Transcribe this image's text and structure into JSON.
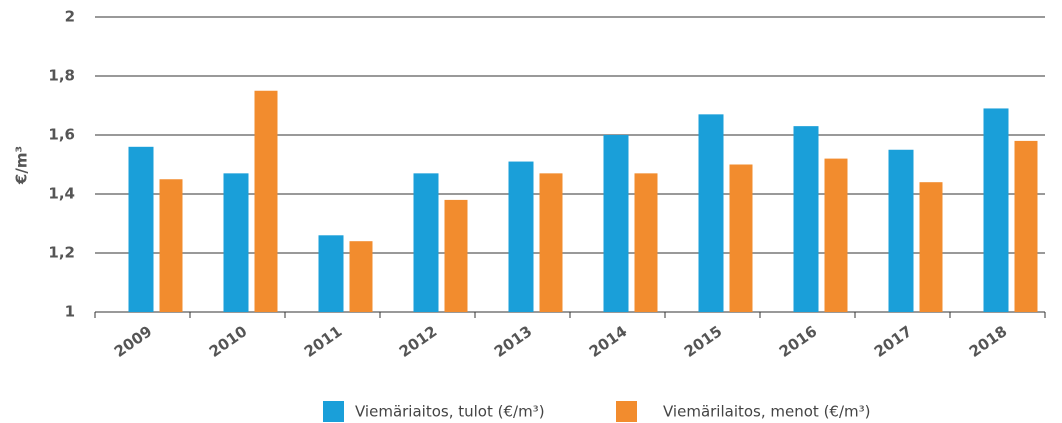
{
  "chart_data": {
    "type": "bar",
    "ylabel": "€/m³",
    "categories": [
      "2009",
      "2010",
      "2011",
      "2012",
      "2013",
      "2014",
      "2015",
      "2016",
      "2017",
      "2018"
    ],
    "series": [
      {
        "name": "Viemäriaitos, tulot (€/m³)",
        "color": "#1a9fd9",
        "values": [
          1.56,
          1.47,
          1.26,
          1.47,
          1.51,
          1.6,
          1.67,
          1.63,
          1.55,
          1.69
        ]
      },
      {
        "name": "Viemärilaitos, menot (€/m³)",
        "color": "#f28c2e",
        "values": [
          1.45,
          1.75,
          1.24,
          1.38,
          1.47,
          1.47,
          1.5,
          1.52,
          1.44,
          1.58
        ]
      }
    ],
    "ylim": [
      1,
      2
    ],
    "yticks": [
      1,
      {
        "value": 1.2,
        "label": "1,2"
      },
      {
        "value": 1.4,
        "label": "1,4"
      },
      {
        "value": 1.6,
        "label": "1,6"
      },
      {
        "value": 1.8,
        "label": "1,8"
      },
      2
    ],
    "grid": true,
    "legend": "bottom"
  }
}
